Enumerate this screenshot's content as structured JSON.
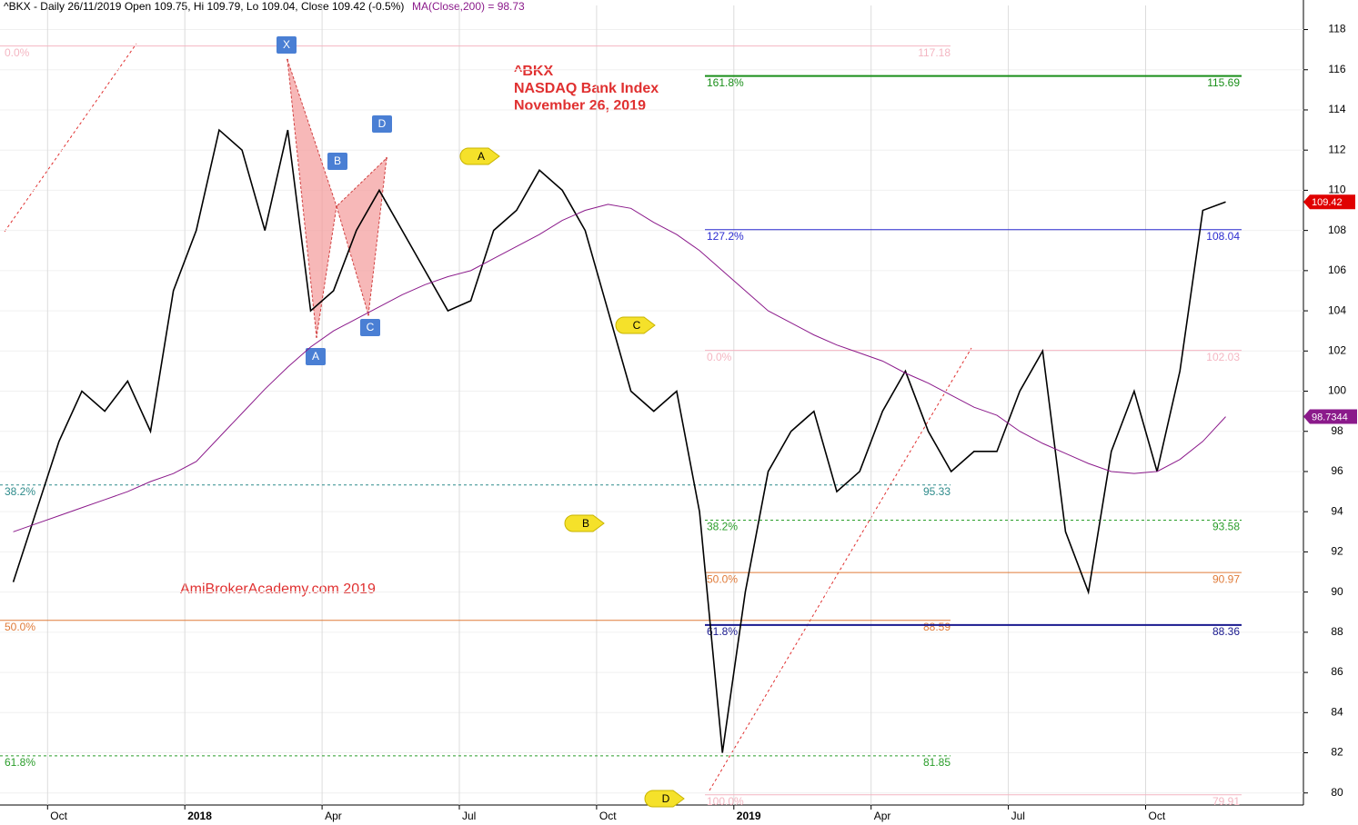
{
  "chart_data": {
    "type": "line",
    "header": "^BKX - Daily 26/11/2019 Open 109.75, Hi 109.79, Lo 109.04, Close 109.42 (-0.5%)",
    "header_ma": "MA(Close,200) = 98.73",
    "annotation": [
      "^BKX",
      "NASDAQ Bank Index",
      "November 26, 2019"
    ],
    "watermark": "AmiBrokerAcademy.com   2019",
    "categories": [
      null,
      null,
      "Oct",
      null,
      null,
      null,
      null,
      null,
      "2018",
      null,
      null,
      null,
      null,
      null,
      "Apr",
      null,
      null,
      null,
      null,
      null,
      "Jul",
      null,
      null,
      null,
      null,
      null,
      "Oct",
      null,
      null,
      null,
      null,
      null,
      "2019",
      null,
      null,
      null,
      null,
      null,
      "Apr",
      null,
      null,
      null,
      null,
      null,
      "Jul",
      null,
      null,
      null,
      null,
      null,
      "Oct",
      null,
      null,
      null
    ],
    "series": [
      {
        "name": "^BKX",
        "color": "#000000",
        "values": [
          90.5,
          94,
          97.5,
          100,
          99,
          100.5,
          98,
          105,
          108,
          113,
          112,
          108,
          113,
          104,
          105,
          108,
          110,
          108,
          106,
          104,
          104.5,
          108,
          109,
          111,
          110,
          108,
          104,
          100,
          99,
          100,
          94,
          82,
          90,
          96,
          98,
          99,
          95,
          96,
          99,
          101,
          98,
          96,
          97,
          97,
          100,
          102,
          93,
          90,
          97,
          100,
          96,
          101,
          109,
          109.42
        ]
      },
      {
        "name": "MA(Close,200)",
        "color": "#8b1a8b",
        "values": [
          93,
          93.4,
          93.8,
          94.2,
          94.6,
          95,
          95.5,
          95.9,
          96.5,
          97.7,
          98.9,
          100.1,
          101.2,
          102.2,
          103,
          103.6,
          104.2,
          104.8,
          105.3,
          105.7,
          106,
          106.6,
          107.2,
          107.8,
          108.5,
          109,
          109.3,
          109.1,
          108.4,
          107.8,
          107,
          106,
          105,
          104,
          103.4,
          102.8,
          102.3,
          101.9,
          101.5,
          100.9,
          100.4,
          99.8,
          99.2,
          98.8,
          98,
          97.4,
          96.9,
          96.4,
          96,
          95.9,
          96,
          96.6,
          97.5,
          98.73
        ]
      }
    ],
    "last_price": 109.42,
    "ma_last": 98.7344,
    "pattern": {
      "labels": [
        "X",
        "A",
        "B",
        "C",
        "D"
      ],
      "values": [
        116.5,
        102.7,
        109.2,
        103.8,
        111.6
      ]
    },
    "callouts": [
      "A",
      "B",
      "C",
      "D"
    ],
    "fib_left": [
      {
        "label": "0.0%",
        "price": 117.18,
        "color": "#f4b6c2"
      },
      {
        "label": "38.2%",
        "price": 95.33,
        "color": "#2e8b8b"
      },
      {
        "label": "50.0%",
        "price": 88.59,
        "color": "#e07b39"
      },
      {
        "label": "61.8%",
        "price": 81.85,
        "color": "#2a9d2a"
      }
    ],
    "fib_right": [
      {
        "label": "161.8%",
        "price": 115.69,
        "color": "#1a8f1a"
      },
      {
        "label": "127.2%",
        "price": 108.04,
        "color": "#2b2bd0"
      },
      {
        "label": "0.0%",
        "price": 102.03,
        "color": "#f4b6c2"
      },
      {
        "label": "38.2%",
        "price": 93.58,
        "color": "#2a9d2a"
      },
      {
        "label": "50.0%",
        "price": 90.97,
        "color": "#e07b39"
      },
      {
        "label": "61.8%",
        "price": 88.36,
        "color": "#1a1a8f"
      },
      {
        "label": "100.0%",
        "price": 79.91,
        "color": "#f4b6c2"
      }
    ],
    "ylim": [
      79.4,
      119.2
    ],
    "yticks": [
      80,
      82,
      84,
      86,
      88,
      90,
      92,
      94,
      96,
      98,
      100,
      102,
      104,
      106,
      108,
      110,
      112,
      114,
      116,
      118
    ],
    "grid": true
  }
}
